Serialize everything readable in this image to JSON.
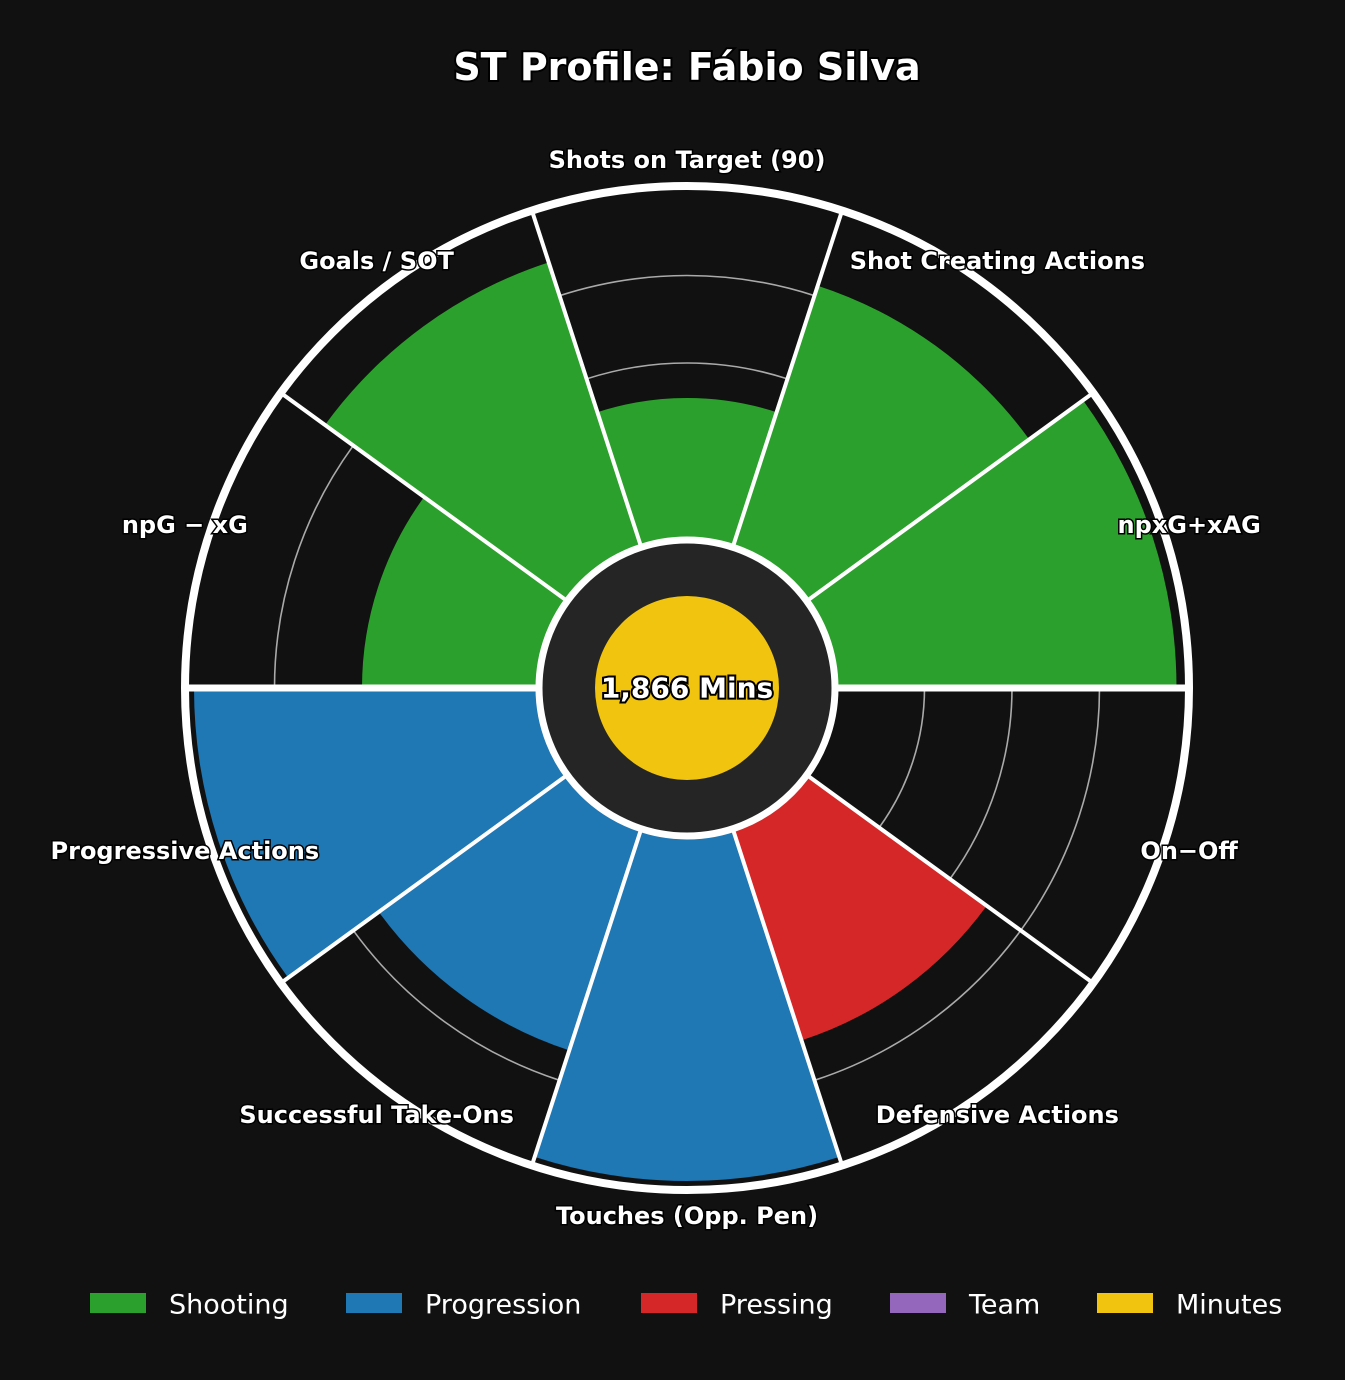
{
  "chart_data": {
    "type": "polar-bar",
    "title": "ST Profile: Fábio Silva",
    "center_label": "1,866 Mins",
    "rlim": [
      0,
      100
    ],
    "grid": true,
    "legend_position": "bottom",
    "categories": [
      "npxG+xAG",
      "Shot Creating Actions",
      "Shots on Target (90)",
      "Goals / SOT",
      "npG − xG",
      "Progressive Actions",
      "Successful Take-Ons",
      "Touches (Opp. Pen)",
      "Defensive Actions",
      "On−Off"
    ],
    "values": [
      97,
      78,
      40,
      85,
      50,
      98,
      66,
      98,
      63,
      0
    ],
    "groups": [
      "Shooting",
      "Shooting",
      "Shooting",
      "Shooting",
      "Shooting",
      "Progression",
      "Progression",
      "Progression",
      "Pressing",
      "Team"
    ],
    "legend": [
      {
        "name": "Shooting",
        "color": "#2ca02c"
      },
      {
        "name": "Progression",
        "color": "#1f77b4"
      },
      {
        "name": "Pressing",
        "color": "#d62728"
      },
      {
        "name": "Team",
        "color": "#9467bd"
      },
      {
        "name": "Minutes",
        "color": "#f1c40f"
      }
    ],
    "colors": {
      "background": "#111111",
      "hub": "#252525",
      "outline": "#ffffff",
      "grid": "#aaaaaa"
    }
  }
}
